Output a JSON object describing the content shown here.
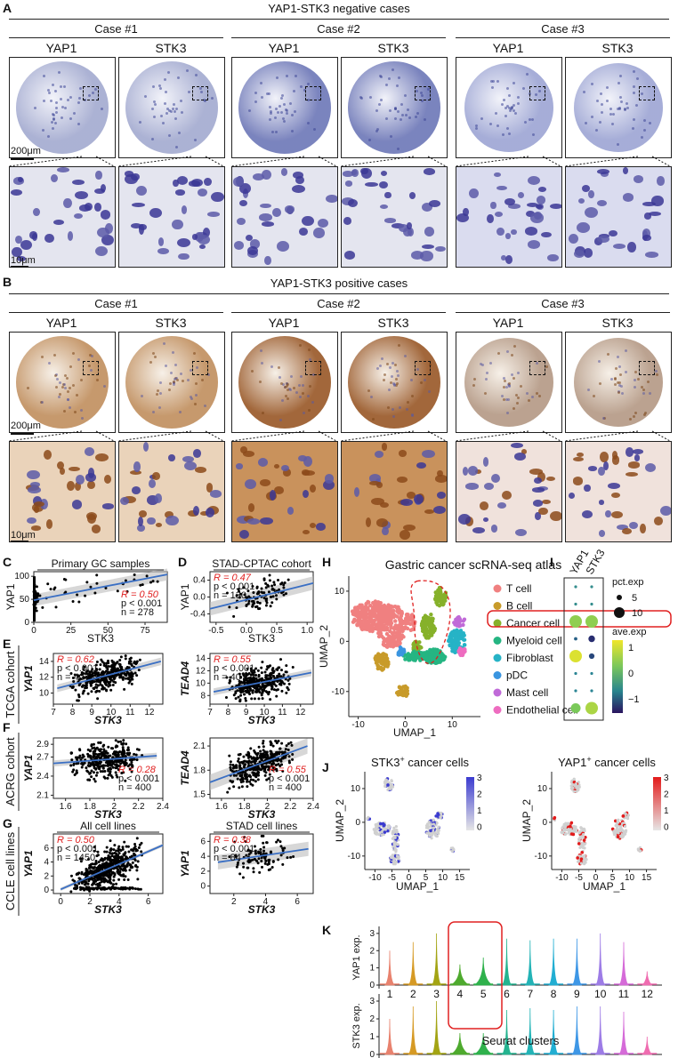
{
  "panel_labels": {
    "A": "A",
    "B": "B",
    "C": "C",
    "D": "D",
    "E": "E",
    "F": "F",
    "G": "G",
    "H": "H",
    "I": "I",
    "J": "J",
    "K": "K"
  },
  "panelA": {
    "title": "YAP1-STK3 negative cases",
    "cases": [
      "Case #1",
      "Case #2",
      "Case #3"
    ],
    "markers": [
      "YAP1",
      "STK3"
    ],
    "scale_overview": "200μm",
    "scale_zoom": "10μm"
  },
  "panelB": {
    "title": "YAP1-STK3 positive cases",
    "cases": [
      "Case #1",
      "Case #2",
      "Case #3"
    ],
    "markers": [
      "YAP1",
      "STK3"
    ],
    "scale_overview": "200μm",
    "scale_zoom": "10μm"
  },
  "colors": {
    "neg_stain": "#8e98c8",
    "neg_bg": "#eef0f8",
    "pos_stain": "#b0804a",
    "pos_bg": "#f3ebe0",
    "hema": "#39318a",
    "dab": "#9a5a24",
    "regression": "#3a6fc4",
    "band": "#bdbdbd",
    "red": "#e02020"
  },
  "chart_data": [
    {
      "id": "C",
      "type": "scatter",
      "title": "Primary GC samples",
      "xlabel": "STK3",
      "ylabel": "YAP1",
      "xlim": [
        0,
        90
      ],
      "ylim": [
        0,
        110
      ],
      "xticks": [
        0,
        25,
        50,
        75
      ],
      "yticks": [
        0,
        50,
        100
      ],
      "stats": {
        "R": "R = 0.50",
        "p": "p < 0.001",
        "n": "n = 278"
      },
      "fit": [
        [
          0,
          48
        ],
        [
          90,
          104
        ]
      ],
      "band_half": 8
    },
    {
      "id": "D",
      "type": "scatter",
      "title": "STAD-CPTAC cohort",
      "xlabel": "STK3",
      "ylabel": "YAP1",
      "xlim": [
        -0.6,
        1.1
      ],
      "ylim": [
        -0.6,
        0.6
      ],
      "xticks": [
        -0.5,
        0,
        0.5,
        1
      ],
      "xtick_labels": [
        "-0.5",
        "0.0",
        "0.5",
        "1.0"
      ],
      "yticks": [
        -0.4,
        0,
        0.4
      ],
      "ytick_labels": [
        "-0.4",
        "0.0",
        "0.4"
      ],
      "stats": {
        "R": "R = 0.47",
        "p": "p < 0.001",
        "n": "n = 130"
      },
      "fit": [
        [
          -0.6,
          -0.28
        ],
        [
          1.1,
          0.33
        ]
      ],
      "band_half": 0.1
    },
    {
      "id": "E1",
      "type": "scatter",
      "title": "",
      "xlabel": "STK3",
      "ylabel": "YAP1",
      "xlim": [
        7,
        12.7
      ],
      "ylim": [
        8.6,
        15
      ],
      "xticks": [
        7,
        8,
        9,
        10,
        11,
        12
      ],
      "yticks": [
        10,
        12,
        14
      ],
      "stats": {
        "R": "R = 0.62",
        "p": "p < 0.001",
        "n": "n = 407"
      },
      "fit": [
        [
          7.2,
          10.6
        ],
        [
          12.6,
          14.0
        ]
      ],
      "band_half": 0.3
    },
    {
      "id": "E2",
      "type": "scatter",
      "title": "",
      "xlabel": "STK3",
      "ylabel": "TEAD4",
      "xlim": [
        7,
        12.7
      ],
      "ylim": [
        6.6,
        14.8
      ],
      "xticks": [
        7,
        8,
        9,
        10,
        11,
        12
      ],
      "yticks": [
        8,
        10,
        12,
        14
      ],
      "stats": {
        "R": "R = 0.55",
        "p": "p < 0.001",
        "n": "n = 407"
      },
      "fit": [
        [
          7.2,
          8.6
        ],
        [
          12.6,
          11.7
        ]
      ],
      "band_half": 0.35
    },
    {
      "id": "F1",
      "type": "scatter",
      "title": "",
      "xlabel": "STK3",
      "ylabel": "YAP1",
      "xlim": [
        1.5,
        2.4
      ],
      "ylim": [
        2.05,
        3.0
      ],
      "xticks": [
        1.6,
        1.8,
        2.0,
        2.2,
        2.4
      ],
      "yticks": [
        2.1,
        2.4,
        2.7,
        2.9
      ],
      "stats": {
        "R": "R = 0.28",
        "p": "p < 0.001",
        "n": "n = 400"
      },
      "fit": [
        [
          1.5,
          2.6
        ],
        [
          2.35,
          2.72
        ]
      ],
      "band_half": 0.03
    },
    {
      "id": "F2",
      "type": "scatter",
      "title": "",
      "xlabel": "STK3",
      "ylabel": "TEAD4",
      "xlim": [
        1.5,
        2.4
      ],
      "ylim": [
        1.45,
        2.2
      ],
      "xticks": [
        1.6,
        1.8,
        2.0,
        2.2,
        2.4
      ],
      "yticks": [
        1.5,
        1.8,
        2.1
      ],
      "stats": {
        "R": "R = 0.55",
        "p": "p < 0.001",
        "n": "n = 400"
      },
      "fit": [
        [
          1.5,
          1.65
        ],
        [
          2.35,
          2.1
        ]
      ],
      "band_half": 0.06
    },
    {
      "id": "G1",
      "type": "scatter",
      "title": "All cell lines",
      "xlabel": "STK3",
      "ylabel": "YAP1",
      "xlim": [
        -0.5,
        7
      ],
      "ylim": [
        -0.5,
        8
      ],
      "xticks": [
        0,
        2,
        4,
        6
      ],
      "yticks": [
        0,
        2,
        4,
        6
      ],
      "stats": {
        "R": "R = 0.50",
        "p": "p < 0.001",
        "n": "n = 1450"
      },
      "fit": [
        [
          0,
          0.1
        ],
        [
          7,
          6.4
        ]
      ],
      "band_half": 0.15
    },
    {
      "id": "G2",
      "type": "scatter",
      "title": "STAD cell lines",
      "xlabel": "STK3",
      "ylabel": "YAP1",
      "xlim": [
        0.5,
        7
      ],
      "ylim": [
        -1,
        7
      ],
      "xticks": [
        2,
        4,
        6
      ],
      "yticks": [
        0,
        2,
        4,
        6
      ],
      "stats": {
        "R": "R = 0.38",
        "p": "p < 0.001",
        "n": "n = 84"
      },
      "fit": [
        [
          1,
          3.2
        ],
        [
          6.7,
          5.0
        ]
      ],
      "band_half": 0.6
    }
  ],
  "cohort_labels": {
    "E": "TCGA cohort",
    "F": "ACRG cohort",
    "G": "CCLE cell lines"
  },
  "panelH": {
    "title": "Gastric cancer scRNA-seq atlas",
    "xlabel": "UMAP_1",
    "ylabel": "UMAP_2",
    "xticks": [
      "-10",
      "0",
      "10"
    ],
    "yticks": [
      "10",
      "0",
      "-10"
    ],
    "legend": [
      {
        "label": "T cell",
        "color": "#f08080"
      },
      {
        "label": "B cell",
        "color": "#c89b2a"
      },
      {
        "label": "Cancer cell",
        "color": "#86b12a"
      },
      {
        "label": "Myeloid cell",
        "color": "#25b582"
      },
      {
        "label": "Fibroblast",
        "color": "#26b3c6"
      },
      {
        "label": "pDC",
        "color": "#3a95e0"
      },
      {
        "label": "Mast cell",
        "color": "#c06ad8"
      },
      {
        "label": "Endothelial cell",
        "color": "#ee6cc0"
      }
    ]
  },
  "panelI": {
    "genes": [
      "YAP1",
      "STK3"
    ],
    "size_title": "pct.exp",
    "size_values": [
      "5",
      "10"
    ],
    "color_title": "ave.exp",
    "color_ticks": [
      "1",
      "0",
      "−1"
    ],
    "dots": [
      [
        {
          "s": 0.1,
          "v": -0.2
        },
        {
          "s": 0.1,
          "v": -0.2
        }
      ],
      [
        {
          "s": 0.1,
          "v": -0.2
        },
        {
          "s": 0.1,
          "v": -0.2
        }
      ],
      [
        {
          "s": 1.0,
          "v": 0.7
        },
        {
          "s": 1.0,
          "v": 0.7
        }
      ],
      [
        {
          "s": 0.15,
          "v": -0.6
        },
        {
          "s": 0.45,
          "v": -1.0
        }
      ],
      [
        {
          "s": 1.0,
          "v": 1.25
        },
        {
          "s": 0.35,
          "v": -0.8
        }
      ],
      [
        {
          "s": 0.1,
          "v": -0.3
        },
        {
          "s": 0.1,
          "v": -0.3
        }
      ],
      [
        {
          "s": 0.1,
          "v": -0.3
        },
        {
          "s": 0.1,
          "v": -0.3
        }
      ],
      [
        {
          "s": 0.75,
          "v": 0.55
        },
        {
          "s": 1.0,
          "v": 0.9
        }
      ]
    ]
  },
  "panelJ": [
    {
      "title_pre": "STK3",
      "title_post": " cancer cells",
      "sup": "+",
      "xlabel": "UMAP_1",
      "ylabel": "UMAP_2",
      "xticks": [
        "-10",
        "-5",
        "0",
        "5",
        "10",
        "15"
      ],
      "yticks": [
        "10",
        "0",
        "-10"
      ],
      "scale_ticks": [
        "3",
        "2",
        "1",
        "0"
      ],
      "hi": "#3b3bd0"
    },
    {
      "title_pre": "YAP1",
      "title_post": " cancer cells",
      "sup": "+",
      "xlabel": "UMAP_1",
      "ylabel": "UMAP_2",
      "xticks": [
        "-10",
        "-5",
        "0",
        "5",
        "10",
        "15"
      ],
      "yticks": [
        "10",
        "0",
        "-10"
      ],
      "scale_ticks": [
        "3",
        "2",
        "1",
        "0"
      ],
      "hi": "#e31b1b"
    }
  ],
  "panelK": {
    "xlabel": "Seurat clusters",
    "rows": [
      {
        "ylabel": "YAP1 exp.",
        "yticks": [
          "0",
          "1",
          "2",
          "3"
        ]
      },
      {
        "ylabel": "STK3 exp.",
        "yticks": [
          "0",
          "1",
          "2",
          "3"
        ]
      }
    ],
    "clusters": [
      "1",
      "2",
      "3",
      "4",
      "5",
      "6",
      "7",
      "8",
      "9",
      "10",
      "11",
      "12"
    ],
    "colors": [
      "#e8826e",
      "#d69a24",
      "#a3a414",
      "#4eaa2e",
      "#2fb14c",
      "#25b38f",
      "#23b3b6",
      "#22aed2",
      "#3e97e6",
      "#9d7ce6",
      "#d56bd8",
      "#ef6cb0"
    ],
    "yap1_max": [
      2.0,
      2.5,
      3.0,
      1.2,
      1.6,
      2.7,
      2.6,
      2.7,
      2.7,
      3.0,
      2.5,
      0.8
    ],
    "stk3_max": [
      2.0,
      2.7,
      3.0,
      1.2,
      1.2,
      2.5,
      2.6,
      2.5,
      2.7,
      2.7,
      2.4,
      1.0
    ]
  }
}
